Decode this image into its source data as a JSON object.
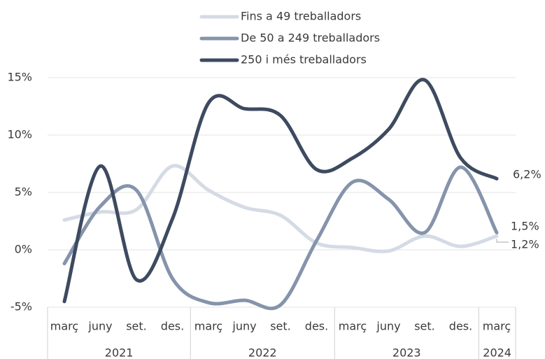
{
  "chart_data": {
    "type": "line",
    "groups": [
      {
        "name": "2021",
        "months": [
          "març",
          "juny",
          "set.",
          "des."
        ]
      },
      {
        "name": "2022",
        "months": [
          "març",
          "juny",
          "set.",
          "des."
        ]
      },
      {
        "name": "2023",
        "months": [
          "març",
          "juny",
          "set.",
          "des."
        ]
      },
      {
        "name": "2024",
        "months": [
          "març"
        ]
      }
    ],
    "series": [
      {
        "name": "Fins a 49 treballadors",
        "color": "#d5dbe5",
        "values": [
          2.6,
          3.3,
          3.5,
          7.3,
          5.2,
          3.7,
          3.0,
          0.6,
          0.2,
          -0.1,
          1.2,
          0.3,
          1.2
        ],
        "value_labels": [
          null,
          null,
          null,
          null,
          null,
          null,
          null,
          null,
          null,
          null,
          null,
          null,
          "1,2%"
        ]
      },
      {
        "name": "De 50 a 249 treballadors",
        "color": "#8594ab",
        "values": [
          -1.2,
          3.8,
          5.2,
          -2.5,
          -4.6,
          -4.4,
          -4.8,
          0.8,
          5.9,
          4.4,
          1.5,
          7.2,
          1.5
        ],
        "value_labels": [
          null,
          null,
          null,
          null,
          null,
          null,
          null,
          null,
          null,
          null,
          null,
          null,
          "1,5%"
        ]
      },
      {
        "name": "250 i més treballadors",
        "color": "#3d4a60",
        "values": [
          -4.5,
          7.3,
          -2.6,
          2.7,
          12.8,
          12.3,
          11.7,
          7.0,
          8.0,
          10.5,
          14.8,
          8.0,
          6.2
        ],
        "value_labels": [
          null,
          null,
          null,
          null,
          null,
          null,
          null,
          null,
          null,
          null,
          null,
          null,
          "6,2%"
        ]
      }
    ],
    "ylim": [
      -5,
      15
    ],
    "yticks": [
      {
        "value": -5,
        "label": "-5%"
      },
      {
        "value": 0,
        "label": "0%"
      },
      {
        "value": 5,
        "label": "5%"
      },
      {
        "value": 10,
        "label": "10%"
      },
      {
        "value": 15,
        "label": "15%"
      }
    ],
    "grid": true,
    "legend": "top"
  }
}
